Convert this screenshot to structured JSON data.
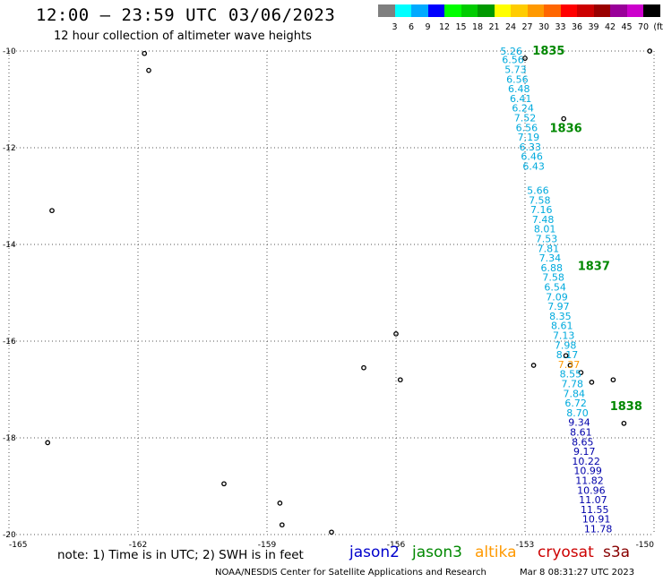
{
  "header": {
    "title": "12:00 – 23:59 UTC 03/06/2023",
    "subtitle": "12 hour collection of altimeter wave heights"
  },
  "colorbar": {
    "colors": [
      "#7f7f7f",
      "#00ffff",
      "#00aaff",
      "#0000ff",
      "#00ff00",
      "#00cc00",
      "#009900",
      "#ffff00",
      "#ffcc00",
      "#ff9900",
      "#ff6600",
      "#ff0000",
      "#cc0000",
      "#990000",
      "#990099",
      "#cc00cc",
      "#000000"
    ],
    "labels": [
      "3",
      "6",
      "9",
      "12",
      "15",
      "18",
      "21",
      "24",
      "27",
      "30",
      "33",
      "36",
      "39",
      "42",
      "45",
      "70",
      "(ft)"
    ]
  },
  "map": {
    "y_ticks": [
      "-10",
      "-12",
      "-14",
      "-16",
      "-18",
      "-20"
    ],
    "x_ticks": [
      "-165",
      "-162",
      "-159",
      "-156",
      "-153",
      "-150"
    ],
    "lon_range": [
      -165,
      -150
    ],
    "lat_range": [
      -20,
      -10
    ],
    "grid": "dotted"
  },
  "tracks": [
    {
      "color": "#00aadd",
      "labels": [
        {
          "text": "5.26",
          "lon": -153.32,
          "lat": -10.0
        },
        {
          "text": "6.56",
          "lon": -153.28,
          "lat": -10.18
        },
        {
          "text": "5.73",
          "lon": -153.22,
          "lat": -10.38
        },
        {
          "text": "6.56",
          "lon": -153.18,
          "lat": -10.58
        },
        {
          "text": "6.48",
          "lon": -153.14,
          "lat": -10.78
        },
        {
          "text": "6.41",
          "lon": -153.1,
          "lat": -10.98
        },
        {
          "text": "6.24",
          "lon": -153.05,
          "lat": -11.18
        },
        {
          "text": "7.52",
          "lon": -153.0,
          "lat": -11.38
        },
        {
          "text": "6.56",
          "lon": -152.96,
          "lat": -11.58
        },
        {
          "text": "7.19",
          "lon": -152.92,
          "lat": -11.78
        },
        {
          "text": "6.33",
          "lon": -152.88,
          "lat": -11.98
        },
        {
          "text": "6.46",
          "lon": -152.84,
          "lat": -12.18
        },
        {
          "text": "6.43",
          "lon": -152.8,
          "lat": -12.38
        },
        {
          "text": "5.66",
          "lon": -152.7,
          "lat": -12.88
        },
        {
          "text": "7.58",
          "lon": -152.66,
          "lat": -13.08
        },
        {
          "text": "7.16",
          "lon": -152.62,
          "lat": -13.28
        },
        {
          "text": "7.48",
          "lon": -152.58,
          "lat": -13.48
        },
        {
          "text": "8.01",
          "lon": -152.54,
          "lat": -13.68
        },
        {
          "text": "7.53",
          "lon": -152.5,
          "lat": -13.88
        },
        {
          "text": "7.81",
          "lon": -152.46,
          "lat": -14.08
        },
        {
          "text": "7.34",
          "lon": -152.42,
          "lat": -14.28
        },
        {
          "text": "6.88",
          "lon": -152.38,
          "lat": -14.48
        },
        {
          "text": "7.58",
          "lon": -152.34,
          "lat": -14.68
        },
        {
          "text": "6.54",
          "lon": -152.3,
          "lat": -14.88
        },
        {
          "text": "7.09",
          "lon": -152.26,
          "lat": -15.08
        },
        {
          "text": "7.97",
          "lon": -152.22,
          "lat": -15.28
        },
        {
          "text": "8.35",
          "lon": -152.18,
          "lat": -15.48
        },
        {
          "text": "8.61",
          "lon": -152.14,
          "lat": -15.68
        },
        {
          "text": "7.13",
          "lon": -152.1,
          "lat": -15.88
        },
        {
          "text": "7.98",
          "lon": -152.06,
          "lat": -16.08
        },
        {
          "text": "8.17",
          "lon": -152.02,
          "lat": -16.28
        },
        {
          "text": "8.55",
          "lon": -151.94,
          "lat": -16.68
        },
        {
          "text": "7.78",
          "lon": -151.9,
          "lat": -16.88
        },
        {
          "text": "7.84",
          "lon": -151.86,
          "lat": -17.08
        },
        {
          "text": "6.72",
          "lon": -151.82,
          "lat": -17.28
        },
        {
          "text": "8.70",
          "lon": -151.78,
          "lat": -17.48
        }
      ]
    },
    {
      "color": "#ff9900",
      "labels": [
        {
          "text": "7.37",
          "lon": -151.98,
          "lat": -16.48
        }
      ]
    },
    {
      "color": "#0000aa",
      "labels": [
        {
          "text": "9.34",
          "lon": -151.74,
          "lat": -17.68
        },
        {
          "text": "8.61",
          "lon": -151.7,
          "lat": -17.88
        },
        {
          "text": "8.65",
          "lon": -151.66,
          "lat": -18.08
        },
        {
          "text": "9.17",
          "lon": -151.62,
          "lat": -18.28
        },
        {
          "text": "10.22",
          "lon": -151.58,
          "lat": -18.48
        },
        {
          "text": "10.99",
          "lon": -151.54,
          "lat": -18.68
        },
        {
          "text": "11.82",
          "lon": -151.5,
          "lat": -18.88
        },
        {
          "text": "10.96",
          "lon": -151.46,
          "lat": -19.08
        },
        {
          "text": "11.07",
          "lon": -151.42,
          "lat": -19.28
        },
        {
          "text": "11.55",
          "lon": -151.38,
          "lat": -19.48
        },
        {
          "text": "10.91",
          "lon": -151.34,
          "lat": -19.68
        },
        {
          "text": "11.78",
          "lon": -151.3,
          "lat": -19.88
        }
      ]
    }
  ],
  "pass_labels": [
    {
      "text": "1835",
      "lon": -152.45,
      "lat": -10.0
    },
    {
      "text": "1836",
      "lon": -152.05,
      "lat": -11.6
    },
    {
      "text": "1837",
      "lon": -151.4,
      "lat": -14.45
    },
    {
      "text": "1838",
      "lon": -150.65,
      "lat": -17.35
    }
  ],
  "pass_label_color": "#008800",
  "islands": [
    {
      "lon": -161.85,
      "lat": -10.05
    },
    {
      "lon": -161.75,
      "lat": -10.4
    },
    {
      "lon": -164.0,
      "lat": -13.3
    },
    {
      "lon": -164.1,
      "lat": -18.1
    },
    {
      "lon": -160.0,
      "lat": -18.95
    },
    {
      "lon": -158.7,
      "lat": -19.35
    },
    {
      "lon": -157.5,
      "lat": -19.95
    },
    {
      "lon": -156.75,
      "lat": -16.55
    },
    {
      "lon": -155.9,
      "lat": -16.8
    },
    {
      "lon": -156.0,
      "lat": -15.85
    },
    {
      "lon": -153.0,
      "lat": -10.15
    },
    {
      "lon": -152.1,
      "lat": -11.4
    },
    {
      "lon": -152.8,
      "lat": -16.5
    },
    {
      "lon": -152.05,
      "lat": -16.3
    },
    {
      "lon": -151.95,
      "lat": -16.5
    },
    {
      "lon": -151.7,
      "lat": -16.65
    },
    {
      "lon": -151.45,
      "lat": -16.85
    },
    {
      "lon": -150.95,
      "lat": -16.8
    },
    {
      "lon": -150.7,
      "lat": -17.7
    },
    {
      "lon": -150.1,
      "lat": -10.0
    },
    {
      "lon": -158.65,
      "lat": -19.8
    }
  ],
  "note": "note: 1) Time is in UTC; 2) SWH is in feet",
  "legend": [
    {
      "name": "jason2",
      "color": "#0000cc"
    },
    {
      "name": "jason3",
      "color": "#008800"
    },
    {
      "name": "altika",
      "color": "#ff9900"
    },
    {
      "name": "cryosat",
      "color": "#cc0000"
    },
    {
      "name": "s3a",
      "color": "#880000"
    }
  ],
  "footer": {
    "center": "NOAA/NESDIS Center for Satellite Applications and Research",
    "timestamp": "Mar  8 08:31:27 UTC 2023"
  }
}
